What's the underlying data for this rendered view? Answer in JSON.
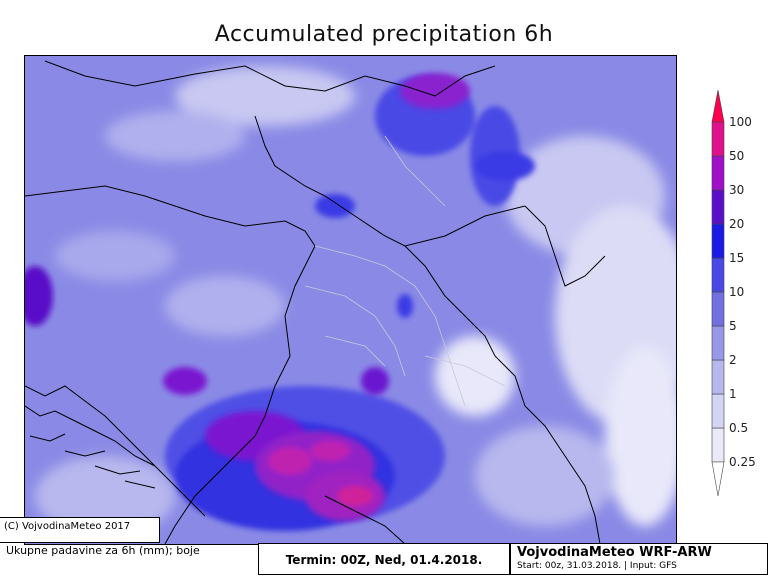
{
  "title": "Accumulated precipitation 6h",
  "legend": {
    "levels": [
      "0.25",
      "0.5",
      "1",
      "2",
      "5",
      "10",
      "15",
      "20",
      "30",
      "50",
      "100"
    ],
    "colors": [
      "#ffffff",
      "#e9e9f8",
      "#d4d4f4",
      "#b8b8ee",
      "#9898e8",
      "#7070e0",
      "#4848e6",
      "#1a1ae6",
      "#5a10c8",
      "#a010c8",
      "#e0108c"
    ],
    "top_arrow_color": "#ff0050"
  },
  "copyright": "(C) VojvodinaMeteo 2017",
  "footer": {
    "description": "Ukupne padavine za 6h (mm); boje",
    "termin": "Termin: 00Z, Ned, 01.4.2018.",
    "model": "VojvodinaMeteo WRF-ARW",
    "run_info": "Start: 00z, 31.03.2018. | Input: GFS"
  }
}
